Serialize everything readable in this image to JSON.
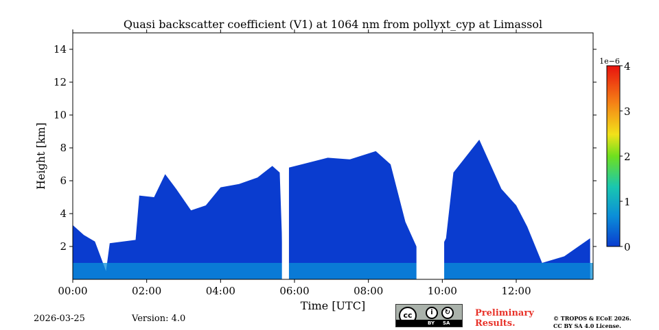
{
  "chart_data": {
    "type": "heatmap",
    "title": "Quasi backscatter coefficient (V1) at 1064 nm from pollyxt_cyp at Limassol",
    "xlabel": "Time [UTC]",
    "ylabel": "Height [km]",
    "x_range_hours": [
      0,
      14.08
    ],
    "ylim": [
      0,
      15
    ],
    "x_ticks": [
      {
        "value": 0,
        "label": "00:00"
      },
      {
        "value": 2,
        "label": "02:00"
      },
      {
        "value": 4,
        "label": "04:00"
      },
      {
        "value": 6,
        "label": "06:00"
      },
      {
        "value": 8,
        "label": "08:00"
      },
      {
        "value": 10,
        "label": "10:00"
      },
      {
        "value": 12,
        "label": "12:00"
      }
    ],
    "y_ticks": [
      {
        "value": 2,
        "label": "2"
      },
      {
        "value": 4,
        "label": "4"
      },
      {
        "value": 6,
        "label": "6"
      },
      {
        "value": 8,
        "label": "8"
      },
      {
        "value": 10,
        "label": "10"
      },
      {
        "value": 12,
        "label": "12"
      },
      {
        "value": 14,
        "label": "14"
      }
    ],
    "colorbar": {
      "min": 0,
      "max": 4,
      "scale_label": "1e−6",
      "ticks": [
        {
          "value": 0,
          "label": "0"
        },
        {
          "value": 1,
          "label": "1"
        },
        {
          "value": 2,
          "label": "2"
        },
        {
          "value": 3,
          "label": "3"
        },
        {
          "value": 4,
          "label": "4"
        }
      ],
      "colors": [
        "#0a3ccf",
        "#0b8fd8",
        "#19c7b0",
        "#6fe01e",
        "#f2e21a",
        "#f57f16",
        "#e8120e"
      ]
    },
    "aerosol_layer": [
      {
        "t": 0.0,
        "top_km": 3.3
      },
      {
        "t": 0.3,
        "top_km": 2.7
      },
      {
        "t": 0.6,
        "top_km": 2.3
      },
      {
        "t": 0.9,
        "top_km": 0.5
      },
      {
        "t": 1.0,
        "top_km": 2.2
      },
      {
        "t": 1.7,
        "top_km": 2.4
      },
      {
        "t": 1.8,
        "top_km": 5.1
      },
      {
        "t": 2.2,
        "top_km": 5.0
      },
      {
        "t": 2.5,
        "top_km": 6.4
      },
      {
        "t": 2.8,
        "top_km": 5.5
      },
      {
        "t": 3.2,
        "top_km": 4.2
      },
      {
        "t": 3.6,
        "top_km": 4.5
      },
      {
        "t": 4.0,
        "top_km": 5.6
      },
      {
        "t": 4.5,
        "top_km": 5.8
      },
      {
        "t": 5.0,
        "top_km": 6.2
      },
      {
        "t": 5.4,
        "top_km": 6.9
      },
      {
        "t": 5.6,
        "top_km": 6.5
      },
      {
        "t": 5.7,
        "top_km": 0.0
      },
      {
        "t": 5.85,
        "top_km": 6.8
      },
      {
        "t": 6.2,
        "top_km": 7.0
      },
      {
        "t": 6.9,
        "top_km": 7.4
      },
      {
        "t": 7.5,
        "top_km": 7.3
      },
      {
        "t": 8.2,
        "top_km": 7.8
      },
      {
        "t": 8.6,
        "top_km": 7.0
      },
      {
        "t": 9.0,
        "top_km": 3.5
      },
      {
        "t": 9.3,
        "top_km": 2.0
      },
      {
        "t": 9.6,
        "top_km": 0.3
      },
      {
        "t": 10.1,
        "top_km": 2.5
      },
      {
        "t": 10.3,
        "top_km": 6.5
      },
      {
        "t": 11.0,
        "top_km": 8.5
      },
      {
        "t": 11.6,
        "top_km": 5.5
      },
      {
        "t": 12.0,
        "top_km": 4.5
      },
      {
        "t": 12.3,
        "top_km": 3.2
      },
      {
        "t": 12.7,
        "top_km": 1.0
      },
      {
        "t": 13.3,
        "top_km": 1.4
      },
      {
        "t": 14.0,
        "top_km": 2.5
      }
    ]
  },
  "footer": {
    "date": "2026-03-25",
    "version": "Version: 4.0",
    "license_badge": {
      "cc": "cc",
      "by": "BY",
      "sa": "SA"
    },
    "preliminary_line1": "Preliminary",
    "preliminary_line2": "Results.",
    "copyright_line1": "© TROPOS & ECoE 2026.",
    "copyright_line2": "CC BY SA 4.0 License."
  }
}
